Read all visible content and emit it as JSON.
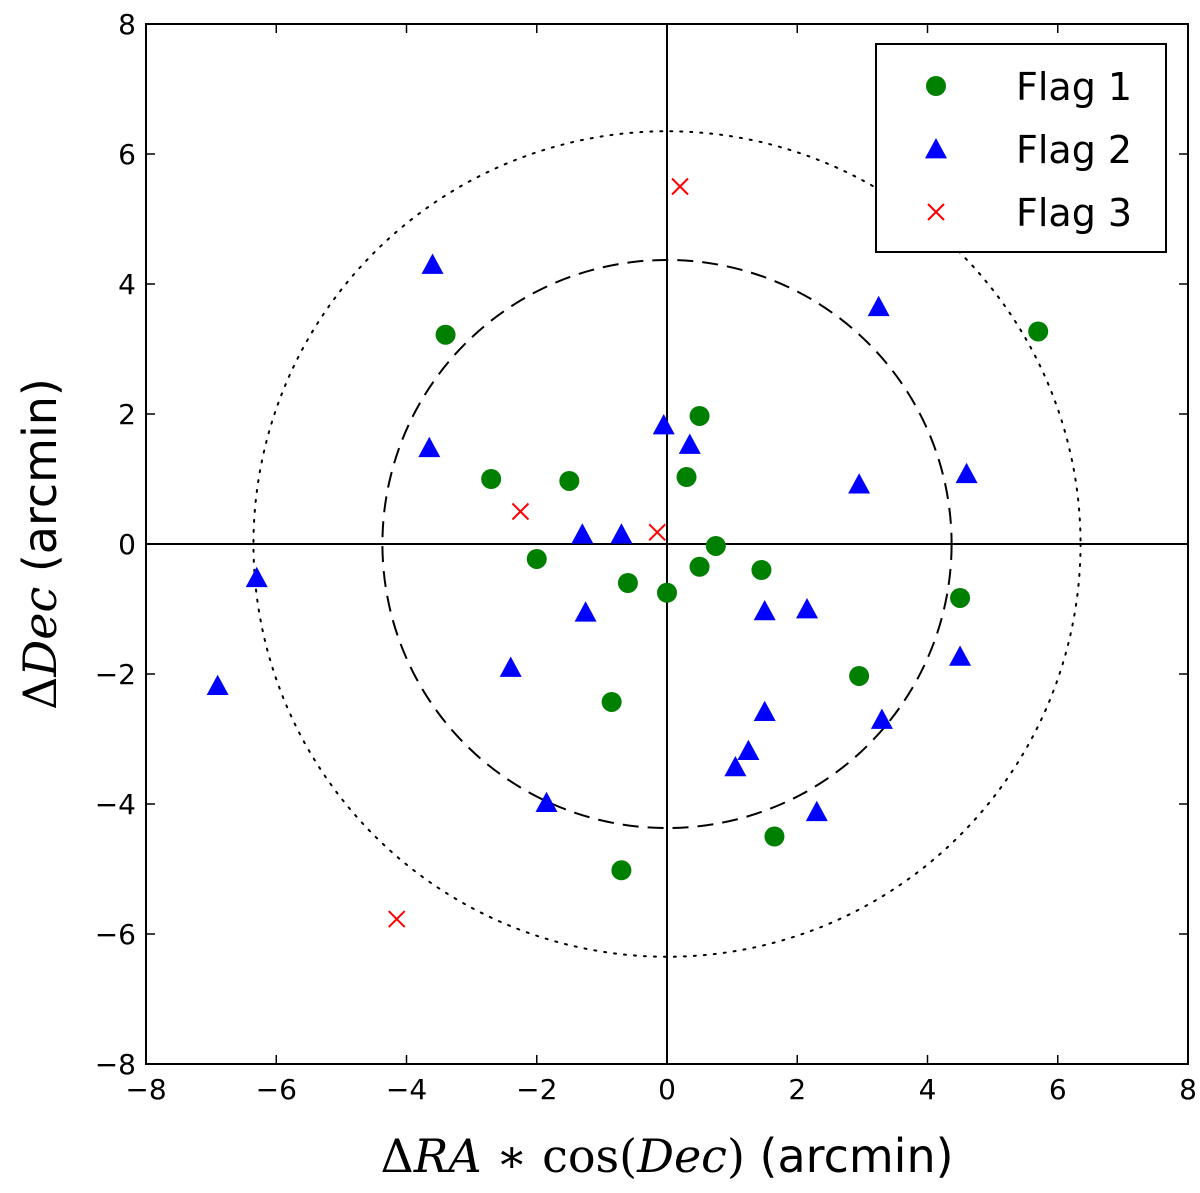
{
  "chart_data": {
    "type": "scatter",
    "xlabel": {
      "delta": "Δ",
      "var": "RA",
      "star": " ∗ ",
      "cos": "cos(",
      "dec": "Dec",
      "close": ")",
      "unit": " (arcmin)"
    },
    "ylabel": {
      "delta": "Δ",
      "var": "Dec",
      "unit": " (arcmin)"
    },
    "xlim": [
      -8,
      8
    ],
    "ylim": [
      -8,
      8
    ],
    "xticks": [
      "−8",
      "−6",
      "−4",
      "−2",
      "0",
      "2",
      "4",
      "6",
      "8"
    ],
    "yticks": [
      "−8",
      "−6",
      "−4",
      "−2",
      "0",
      "2",
      "4",
      "6",
      "8"
    ],
    "xtick_values": [
      -8,
      -6,
      -4,
      -2,
      0,
      2,
      4,
      6,
      8
    ],
    "ytick_values": [
      -8,
      -6,
      -4,
      -2,
      0,
      2,
      4,
      6,
      8
    ],
    "reference_lines": {
      "x": 0,
      "y": 0
    },
    "circles": [
      {
        "radius": 4.37,
        "style": "dashed"
      },
      {
        "radius": 6.35,
        "style": "dotted"
      }
    ],
    "legend_position": "top-right",
    "series": [
      {
        "name": "Flag 1",
        "marker": "circle",
        "color": "#008000",
        "points": [
          [
            -3.4,
            3.22
          ],
          [
            -2.7,
            1.0
          ],
          [
            -1.5,
            0.97
          ],
          [
            -2.0,
            -0.23
          ],
          [
            -0.6,
            -0.6
          ],
          [
            0.0,
            -0.75
          ],
          [
            0.5,
            1.97
          ],
          [
            0.3,
            1.03
          ],
          [
            0.75,
            -0.03
          ],
          [
            0.5,
            -0.35
          ],
          [
            1.45,
            -0.4
          ],
          [
            -0.85,
            -2.43
          ],
          [
            -0.7,
            -5.02
          ],
          [
            1.65,
            -4.5
          ],
          [
            2.95,
            -2.03
          ],
          [
            4.5,
            -0.83
          ],
          [
            5.7,
            3.27
          ]
        ]
      },
      {
        "name": "Flag 2",
        "marker": "triangle",
        "color": "#0000ff",
        "points": [
          [
            -3.6,
            4.3
          ],
          [
            -3.65,
            1.48
          ],
          [
            -6.3,
            -0.52
          ],
          [
            -6.9,
            -2.18
          ],
          [
            -1.3,
            0.15
          ],
          [
            -0.7,
            0.15
          ],
          [
            -1.25,
            -1.05
          ],
          [
            -2.4,
            -1.9
          ],
          [
            -1.85,
            -3.98
          ],
          [
            -0.05,
            1.83
          ],
          [
            0.35,
            1.53
          ],
          [
            1.5,
            -1.03
          ],
          [
            2.15,
            -1.0
          ],
          [
            1.5,
            -2.58
          ],
          [
            1.25,
            -3.18
          ],
          [
            1.05,
            -3.43
          ],
          [
            2.3,
            -4.12
          ],
          [
            3.3,
            -2.7
          ],
          [
            4.5,
            -1.73
          ],
          [
            4.6,
            1.08
          ],
          [
            2.95,
            0.92
          ],
          [
            3.25,
            3.65
          ]
        ]
      },
      {
        "name": "Flag 3",
        "marker": "x",
        "color": "#ff0000",
        "points": [
          [
            0.2,
            5.5
          ],
          [
            -2.25,
            0.5
          ],
          [
            -0.15,
            0.18
          ],
          [
            -4.15,
            -5.77
          ]
        ]
      }
    ]
  }
}
